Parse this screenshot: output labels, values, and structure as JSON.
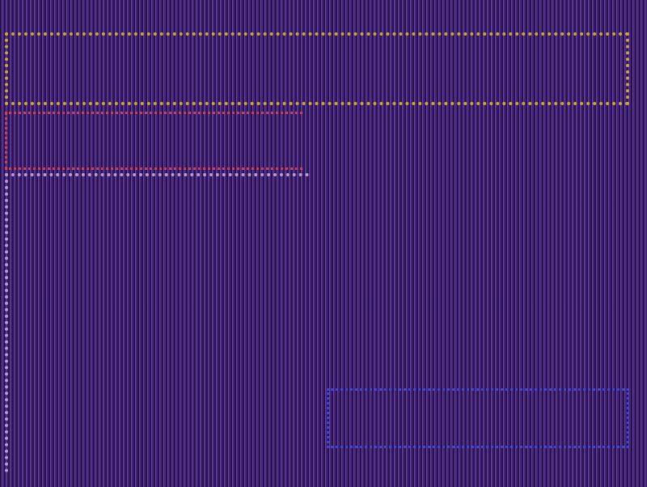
{
  "colors": {
    "background": "#4a2a78",
    "title_frame": "#c8a447",
    "title_text": "#5ec27a",
    "name_frame": "#c8405a",
    "name_text": "#3a48d8",
    "menu_text": "#cdb6ee",
    "action_frame": "#3a48d8"
  },
  "header": {
    "title": "",
    "subtitle": ""
  },
  "player": {
    "name": ""
  },
  "menu": {
    "items": [
      {
        "label": ""
      },
      {
        "label": ""
      },
      {
        "label": ""
      },
      {
        "label": ""
      },
      {
        "label": ""
      }
    ]
  },
  "footer": {
    "text": ""
  },
  "action": {
    "label": ""
  }
}
